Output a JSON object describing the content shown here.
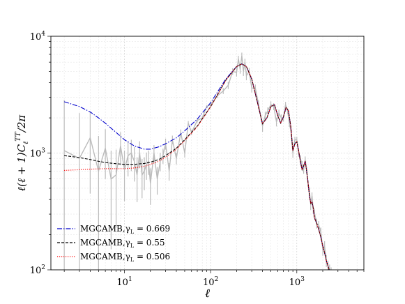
{
  "chart_data": {
    "type": "line",
    "title": "",
    "xlabel": "ℓ",
    "ylabel": "ℓ(ℓ + 1)C",
    "ylabel_sub": "ℓ",
    "ylabel_sup": "TT",
    "ylabel_tail": "/2π",
    "xscale": "log",
    "yscale": "log",
    "xlim": [
      1.4,
      6000
    ],
    "ylim": [
      100,
      10000
    ],
    "grid": true,
    "legend_position": "lower-left",
    "x_major_ticks": [
      {
        "value": 10,
        "base": "10",
        "exp": "1"
      },
      {
        "value": 100,
        "base": "10",
        "exp": "2"
      },
      {
        "value": 1000,
        "base": "10",
        "exp": "3"
      }
    ],
    "y_major_ticks": [
      {
        "value": 100,
        "base": "10",
        "exp": "2"
      },
      {
        "value": 1000,
        "base": "10",
        "exp": "3"
      },
      {
        "value": 10000,
        "base": "10",
        "exp": "4"
      }
    ],
    "series": [
      {
        "name": "MGCAMB,γ",
        "name_sub": "L",
        "name_tail": " = 0.669",
        "color": "#0000cc",
        "dash": "7,2,1.5,2",
        "x": [
          2,
          3,
          4,
          5,
          6,
          8,
          10,
          13,
          17,
          20,
          25,
          30,
          40,
          50,
          70,
          100,
          150,
          200,
          230,
          260,
          300,
          350,
          400,
          450,
          500,
          550,
          600,
          650,
          700,
          750,
          800,
          850,
          900,
          950,
          1000,
          1050,
          1100,
          1150,
          1200,
          1250,
          1300,
          1350,
          1400,
          1450,
          1500,
          1550,
          1600,
          1700,
          1800,
          1900,
          2000,
          2100,
          2200,
          2300,
          2400,
          2500
        ],
        "y": [
          2750,
          2500,
          2250,
          2000,
          1800,
          1500,
          1300,
          1150,
          1080,
          1080,
          1130,
          1200,
          1350,
          1550,
          1950,
          2700,
          4300,
          5500,
          5800,
          5500,
          4300,
          2700,
          1780,
          2000,
          2500,
          2600,
          2100,
          1800,
          2050,
          2450,
          2300,
          1700,
          1050,
          1200,
          1250,
          1050,
          850,
          720,
          780,
          850,
          700,
          560,
          430,
          370,
          380,
          340,
          280,
          250,
          220,
          190,
          160,
          140,
          120,
          108,
          97,
          88
        ]
      },
      {
        "name": "MGCAMB,γ",
        "name_sub": "L",
        "name_tail": " = 0.55",
        "color": "#000000",
        "dash": "4,2",
        "x": [
          2,
          3,
          4,
          5,
          6,
          8,
          10,
          13,
          17,
          20,
          25,
          30,
          40,
          50,
          70,
          100,
          150,
          200,
          230,
          260,
          300,
          350,
          400,
          450,
          500,
          550,
          600,
          650,
          700,
          750,
          800,
          850,
          900,
          950,
          1000,
          1050,
          1100,
          1150,
          1200,
          1250,
          1300,
          1350,
          1400,
          1450,
          1500,
          1550,
          1600,
          1700,
          1800,
          1900,
          2000,
          2100,
          2200,
          2300,
          2400,
          2500
        ],
        "y": [
          950,
          915,
          880,
          850,
          830,
          810,
          800,
          800,
          815,
          835,
          880,
          950,
          1100,
          1300,
          1700,
          2500,
          4200,
          5500,
          5800,
          5500,
          4300,
          2700,
          1780,
          2000,
          2500,
          2600,
          2100,
          1800,
          2050,
          2450,
          2300,
          1700,
          1050,
          1200,
          1250,
          1050,
          850,
          720,
          780,
          850,
          700,
          560,
          430,
          370,
          380,
          340,
          280,
          250,
          220,
          190,
          160,
          140,
          120,
          108,
          97,
          88
        ]
      },
      {
        "name": "MGCAMB,γ",
        "name_sub": "L",
        "name_tail": " = 0.506",
        "color": "#ff0000",
        "dash": "1.2,1.8",
        "x": [
          2,
          3,
          4,
          5,
          6,
          8,
          10,
          13,
          17,
          20,
          25,
          30,
          40,
          50,
          70,
          100,
          150,
          200,
          230,
          260,
          300,
          350,
          400,
          450,
          500,
          550,
          600,
          650,
          700,
          750,
          800,
          850,
          900,
          950,
          1000,
          1050,
          1100,
          1150,
          1200,
          1250,
          1300,
          1350,
          1400,
          1450,
          1500,
          1550,
          1600,
          1700,
          1800,
          1900,
          2000,
          2100,
          2200,
          2300,
          2400,
          2500
        ],
        "y": [
          710,
          720,
          728,
          732,
          735,
          735,
          735,
          745,
          770,
          800,
          850,
          920,
          1080,
          1280,
          1680,
          2480,
          4200,
          5500,
          5800,
          5500,
          4300,
          2700,
          1780,
          2000,
          2500,
          2600,
          2100,
          1800,
          2050,
          2450,
          2300,
          1700,
          1050,
          1200,
          1250,
          1050,
          850,
          720,
          780,
          850,
          700,
          560,
          430,
          370,
          380,
          340,
          280,
          250,
          220,
          190,
          160,
          140,
          120,
          108,
          97,
          88
        ]
      }
    ],
    "observed": {
      "color": "#bbbbbb",
      "x": [
        2,
        3,
        4,
        5,
        6,
        7,
        8,
        9,
        10,
        11,
        12,
        13,
        14,
        15,
        16,
        17,
        18,
        19,
        20,
        22,
        24,
        26,
        28,
        30,
        33,
        36,
        40,
        45,
        50,
        55,
        60,
        70,
        80,
        90,
        100,
        120,
        140,
        160,
        180,
        200,
        210,
        220,
        230,
        240,
        250,
        260,
        280,
        300,
        330,
        360,
        400,
        430,
        460,
        500,
        540,
        580,
        620,
        660,
        700,
        740,
        780,
        820,
        860,
        900,
        950,
        1000,
        1050,
        1100,
        1150,
        1200,
        1250,
        1300,
        1350,
        1400,
        1450,
        1500,
        1550,
        1600,
        1700,
        1800,
        1900,
        2000,
        2100,
        2200,
        2300,
        2400,
        2500
      ],
      "y": [
        1050,
        900,
        1350,
        700,
        1100,
        600,
        650,
        1150,
        720,
        950,
        1000,
        850,
        650,
        1000,
        650,
        700,
        800,
        850,
        550,
        1000,
        600,
        850,
        950,
        1200,
        700,
        1300,
        900,
        1500,
        1000,
        1800,
        1500,
        1900,
        2000,
        2500,
        2600,
        3100,
        3400,
        3800,
        5000,
        4900,
        6400,
        5200,
        6800,
        5000,
        6000,
        4600,
        5000,
        3600,
        3600,
        2600,
        1700,
        2100,
        2300,
        2600,
        2500,
        1850,
        2200,
        2000,
        2000,
        2600,
        2300,
        1800,
        1500,
        1000,
        1300,
        1300,
        1000,
        900,
        800,
        720,
        880,
        720,
        550,
        470,
        360,
        430,
        330,
        310,
        250,
        240,
        210,
        150,
        160,
        120,
        108,
        100,
        95
      ],
      "err": [
        1800,
        1300,
        900,
        700,
        500,
        450,
        420,
        360,
        330,
        320,
        300,
        280,
        270,
        260,
        240,
        220,
        210,
        200,
        190,
        170,
        160,
        150,
        140,
        130,
        120,
        110,
        100,
        90,
        85,
        80,
        75,
        70,
        65,
        60,
        100,
        140,
        200,
        260,
        320,
        380,
        400,
        420,
        440,
        430,
        420,
        400,
        360,
        300,
        260,
        220,
        180,
        160,
        160,
        170,
        170,
        160,
        150,
        140,
        140,
        140,
        130,
        120,
        100,
        90,
        80,
        80,
        70,
        60,
        55,
        55,
        55,
        45,
        40,
        35,
        35,
        30,
        28,
        26,
        24,
        22,
        20,
        18,
        16,
        14,
        12,
        11,
        10
      ]
    }
  }
}
